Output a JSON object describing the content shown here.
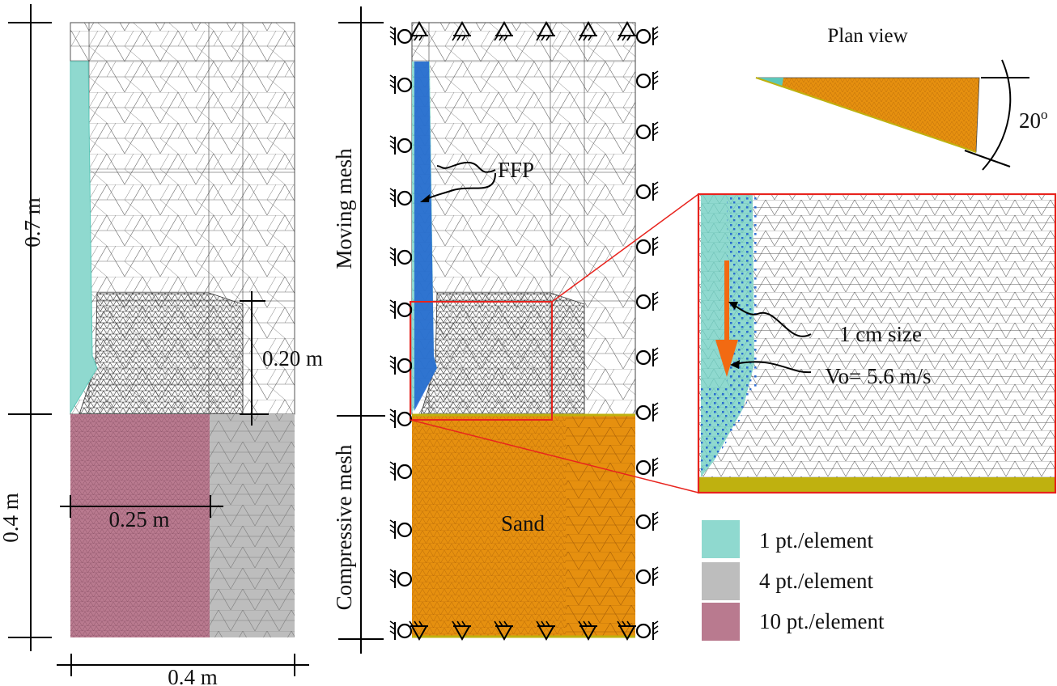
{
  "colors": {
    "cyan": "#8fd9cf",
    "cyan_dark": "#5cc7b9",
    "gray": "#bdbdbd",
    "pink": "#b97a8f",
    "orange": "#e6900f",
    "olive": "#bfb10f",
    "blue": "#1f62d0",
    "red": "#e8231d",
    "arrow": "#f26a12"
  },
  "left": {
    "dim_height_upper": "0.7 m",
    "dim_height_lower": "0.4 m",
    "dim_width_bottom": "0.4 m",
    "dim_width_inner": "0.25 m",
    "dim_height_mid": "0.20 m"
  },
  "middle": {
    "moving_mesh": "Moving mesh",
    "compressive_mesh": "Compressive mesh",
    "ffp": "FFP",
    "sand": "Sand"
  },
  "plan": {
    "title": "Plan view",
    "angle": "20",
    "angle_unit": "o"
  },
  "zoom": {
    "size_label": "1 cm size",
    "velocity_label": "Vo= 5.6 m/s"
  },
  "legend": [
    {
      "label": "1 pt./element",
      "color": "#8fd9cf"
    },
    {
      "label": "4 pt./element",
      "color": "#bdbdbd"
    },
    {
      "label": "10 pt./element",
      "color": "#b97a8f"
    }
  ]
}
